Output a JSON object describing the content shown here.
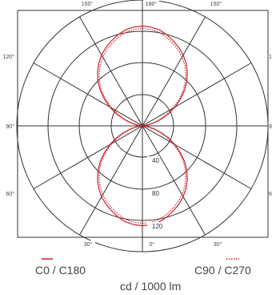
{
  "chart_data": {
    "type": "polar",
    "angle_tick_labels": {
      "top_left": "150°",
      "top_center": "180°",
      "top_right": "150°",
      "left_upper": "120°",
      "right_upper": "1",
      "left_middle": "90°",
      "right_middle": "9",
      "left_lower": "60°",
      "right_lower": "6",
      "bottom_left": "30°",
      "bottom_center": "0°",
      "bottom_right": "30°"
    },
    "radial_ticks": [
      "40",
      "80",
      "120"
    ],
    "radial_max": 160,
    "angles_deg": [
      0,
      5,
      10,
      15,
      20,
      25,
      30,
      35,
      40,
      45,
      50,
      55,
      60,
      65,
      70,
      75,
      80,
      85,
      90,
      95,
      100,
      105,
      110,
      115,
      120,
      125,
      130,
      135,
      140,
      145,
      150,
      155,
      160,
      165,
      170,
      175,
      180
    ],
    "series": [
      {
        "name": "C0 / C180",
        "color": "#cc2229",
        "style": "solid",
        "values": [
          127,
          126,
          124,
          120,
          115,
          110,
          104,
          97,
          89,
          80,
          70,
          59,
          48,
          37,
          26,
          16,
          8,
          3,
          0,
          3,
          8,
          16,
          26,
          37,
          48,
          59,
          70,
          80,
          89,
          97,
          104,
          110,
          115,
          120,
          124,
          126,
          127
        ]
      },
      {
        "name": "C90 / C270",
        "color": "#cc2229",
        "style": "dotted",
        "values": [
          124,
          123,
          121,
          117,
          112,
          107,
          101,
          94,
          86,
          77,
          67,
          56,
          45,
          34,
          24,
          15,
          7,
          2,
          0,
          2,
          7,
          15,
          24,
          34,
          45,
          56,
          67,
          77,
          86,
          94,
          101,
          107,
          112,
          117,
          121,
          123,
          124
        ]
      }
    ],
    "unit_label": "cd / 1000 lm"
  }
}
